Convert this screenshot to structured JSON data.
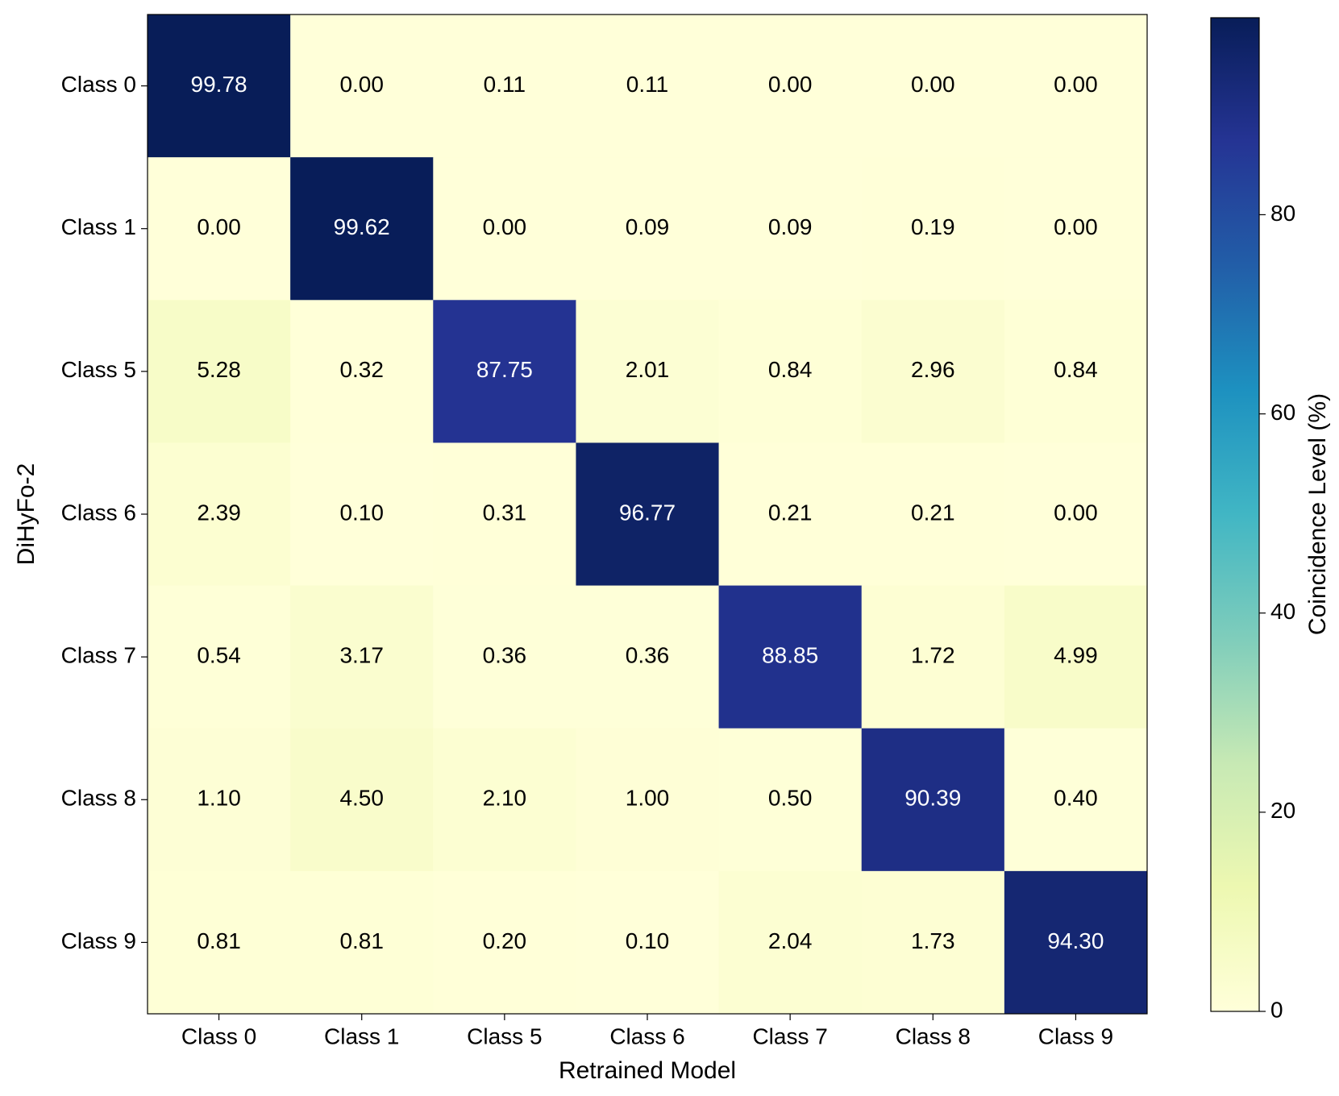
{
  "chart_data": {
    "type": "heatmap",
    "x_label": "Retrained Model",
    "y_label": "DiHyFo-2",
    "categories": [
      "Class 0",
      "Class 1",
      "Class 5",
      "Class 6",
      "Class 7",
      "Class 8",
      "Class 9"
    ],
    "rows": [
      "Class 0",
      "Class 1",
      "Class 5",
      "Class 6",
      "Class 7",
      "Class 8",
      "Class 9"
    ],
    "values": [
      [
        99.78,
        0.0,
        0.11,
        0.11,
        0.0,
        0.0,
        0.0
      ],
      [
        0.0,
        99.62,
        0.0,
        0.09,
        0.09,
        0.19,
        0.0
      ],
      [
        5.28,
        0.32,
        87.75,
        2.01,
        0.84,
        2.96,
        0.84
      ],
      [
        2.39,
        0.1,
        0.31,
        96.77,
        0.21,
        0.21,
        0.0
      ],
      [
        0.54,
        3.17,
        0.36,
        0.36,
        88.85,
        1.72,
        4.99
      ],
      [
        1.1,
        4.5,
        2.1,
        1.0,
        0.5,
        90.39,
        0.4
      ],
      [
        0.81,
        0.81,
        0.2,
        0.1,
        2.04,
        1.73,
        94.3
      ]
    ],
    "value_labels": [
      [
        "99.78",
        "0.00",
        "0.11",
        "0.11",
        "0.00",
        "0.00",
        "0.00"
      ],
      [
        "0.00",
        "99.62",
        "0.00",
        "0.09",
        "0.09",
        "0.19",
        "0.00"
      ],
      [
        "5.28",
        "0.32",
        "87.75",
        "2.01",
        "0.84",
        "2.96",
        "0.84"
      ],
      [
        "2.39",
        "0.10",
        "0.31",
        "96.77",
        "0.21",
        "0.21",
        "0.00"
      ],
      [
        "0.54",
        "3.17",
        "0.36",
        "0.36",
        "88.85",
        "1.72",
        "4.99"
      ],
      [
        "1.10",
        "4.50",
        "2.10",
        "1.00",
        "0.50",
        "90.39",
        "0.40"
      ],
      [
        "0.81",
        "0.81",
        "0.20",
        "0.10",
        "2.04",
        "1.73",
        "94.30"
      ]
    ],
    "colorbar_label": "Coincidence Level (%)",
    "clim": [
      0,
      99.78
    ],
    "cticks": [
      0,
      20,
      40,
      60,
      80
    ],
    "colormap": [
      "#ffffd9",
      "#edf8b1",
      "#c7e9b4",
      "#7fcdbb",
      "#41b6c4",
      "#1d91c0",
      "#225ea8",
      "#253494",
      "#081d58"
    ]
  }
}
